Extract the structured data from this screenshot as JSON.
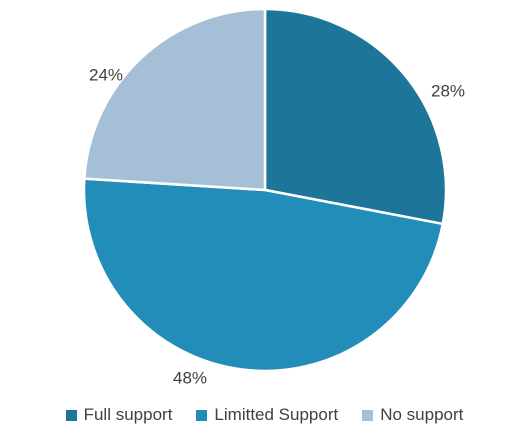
{
  "chart_data": {
    "type": "pie",
    "title": "",
    "start_angle_deg": 0,
    "direction": "clockwise",
    "legend_position": "bottom",
    "slices": [
      {
        "label": "Full support",
        "value": 28,
        "value_label": "28%",
        "color": "#1d7699"
      },
      {
        "label": "Limitted Support",
        "value": 48,
        "value_label": "48%",
        "color": "#228db8"
      },
      {
        "label": "No support",
        "value": 24,
        "value_label": "24%",
        "color": "#a5c0d6"
      }
    ]
  }
}
